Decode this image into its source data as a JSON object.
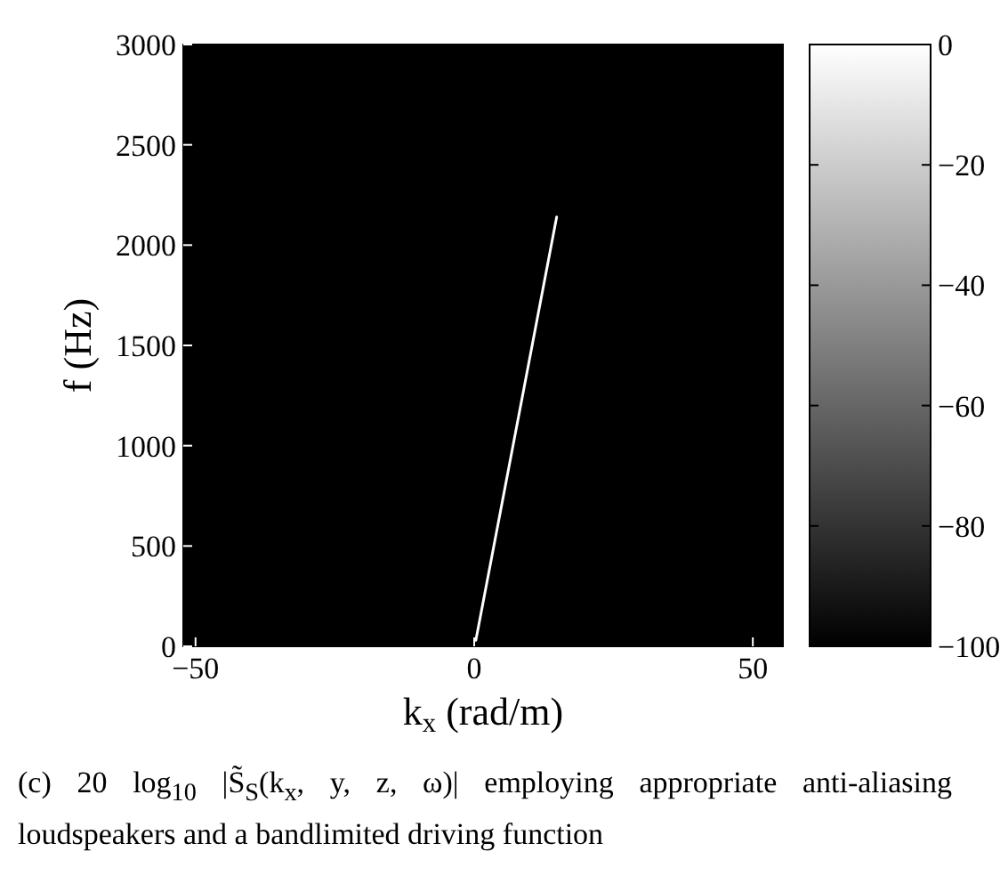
{
  "chart_data": {
    "type": "line",
    "xlabel": "k$_{x}$ (rad/m)",
    "ylabel": "f (Hz)",
    "x": [
      0.3,
      14.8
    ],
    "series": [
      {
        "color": "#ffffff",
        "values": [
          30,
          2140
        ]
      }
    ],
    "xlim": [
      -52.2,
      55.4
    ],
    "xticks": [
      -50,
      0,
      50
    ],
    "ylim": [
      0,
      3000
    ],
    "yticks": [
      0,
      500,
      1000,
      1500,
      2000,
      2500,
      3000
    ],
    "clim": [
      -100,
      0
    ],
    "cticks": [
      -100,
      -80,
      -60,
      -40,
      -20,
      0
    ],
    "grid": false,
    "annotations": [
      "(c) 20 log$_{10}$ |S̃$_{S}$(k$_{x}$, y, z, ω)| employing appropriate anti-aliasing loudspeakers and a bandlimited driving function"
    ]
  }
}
